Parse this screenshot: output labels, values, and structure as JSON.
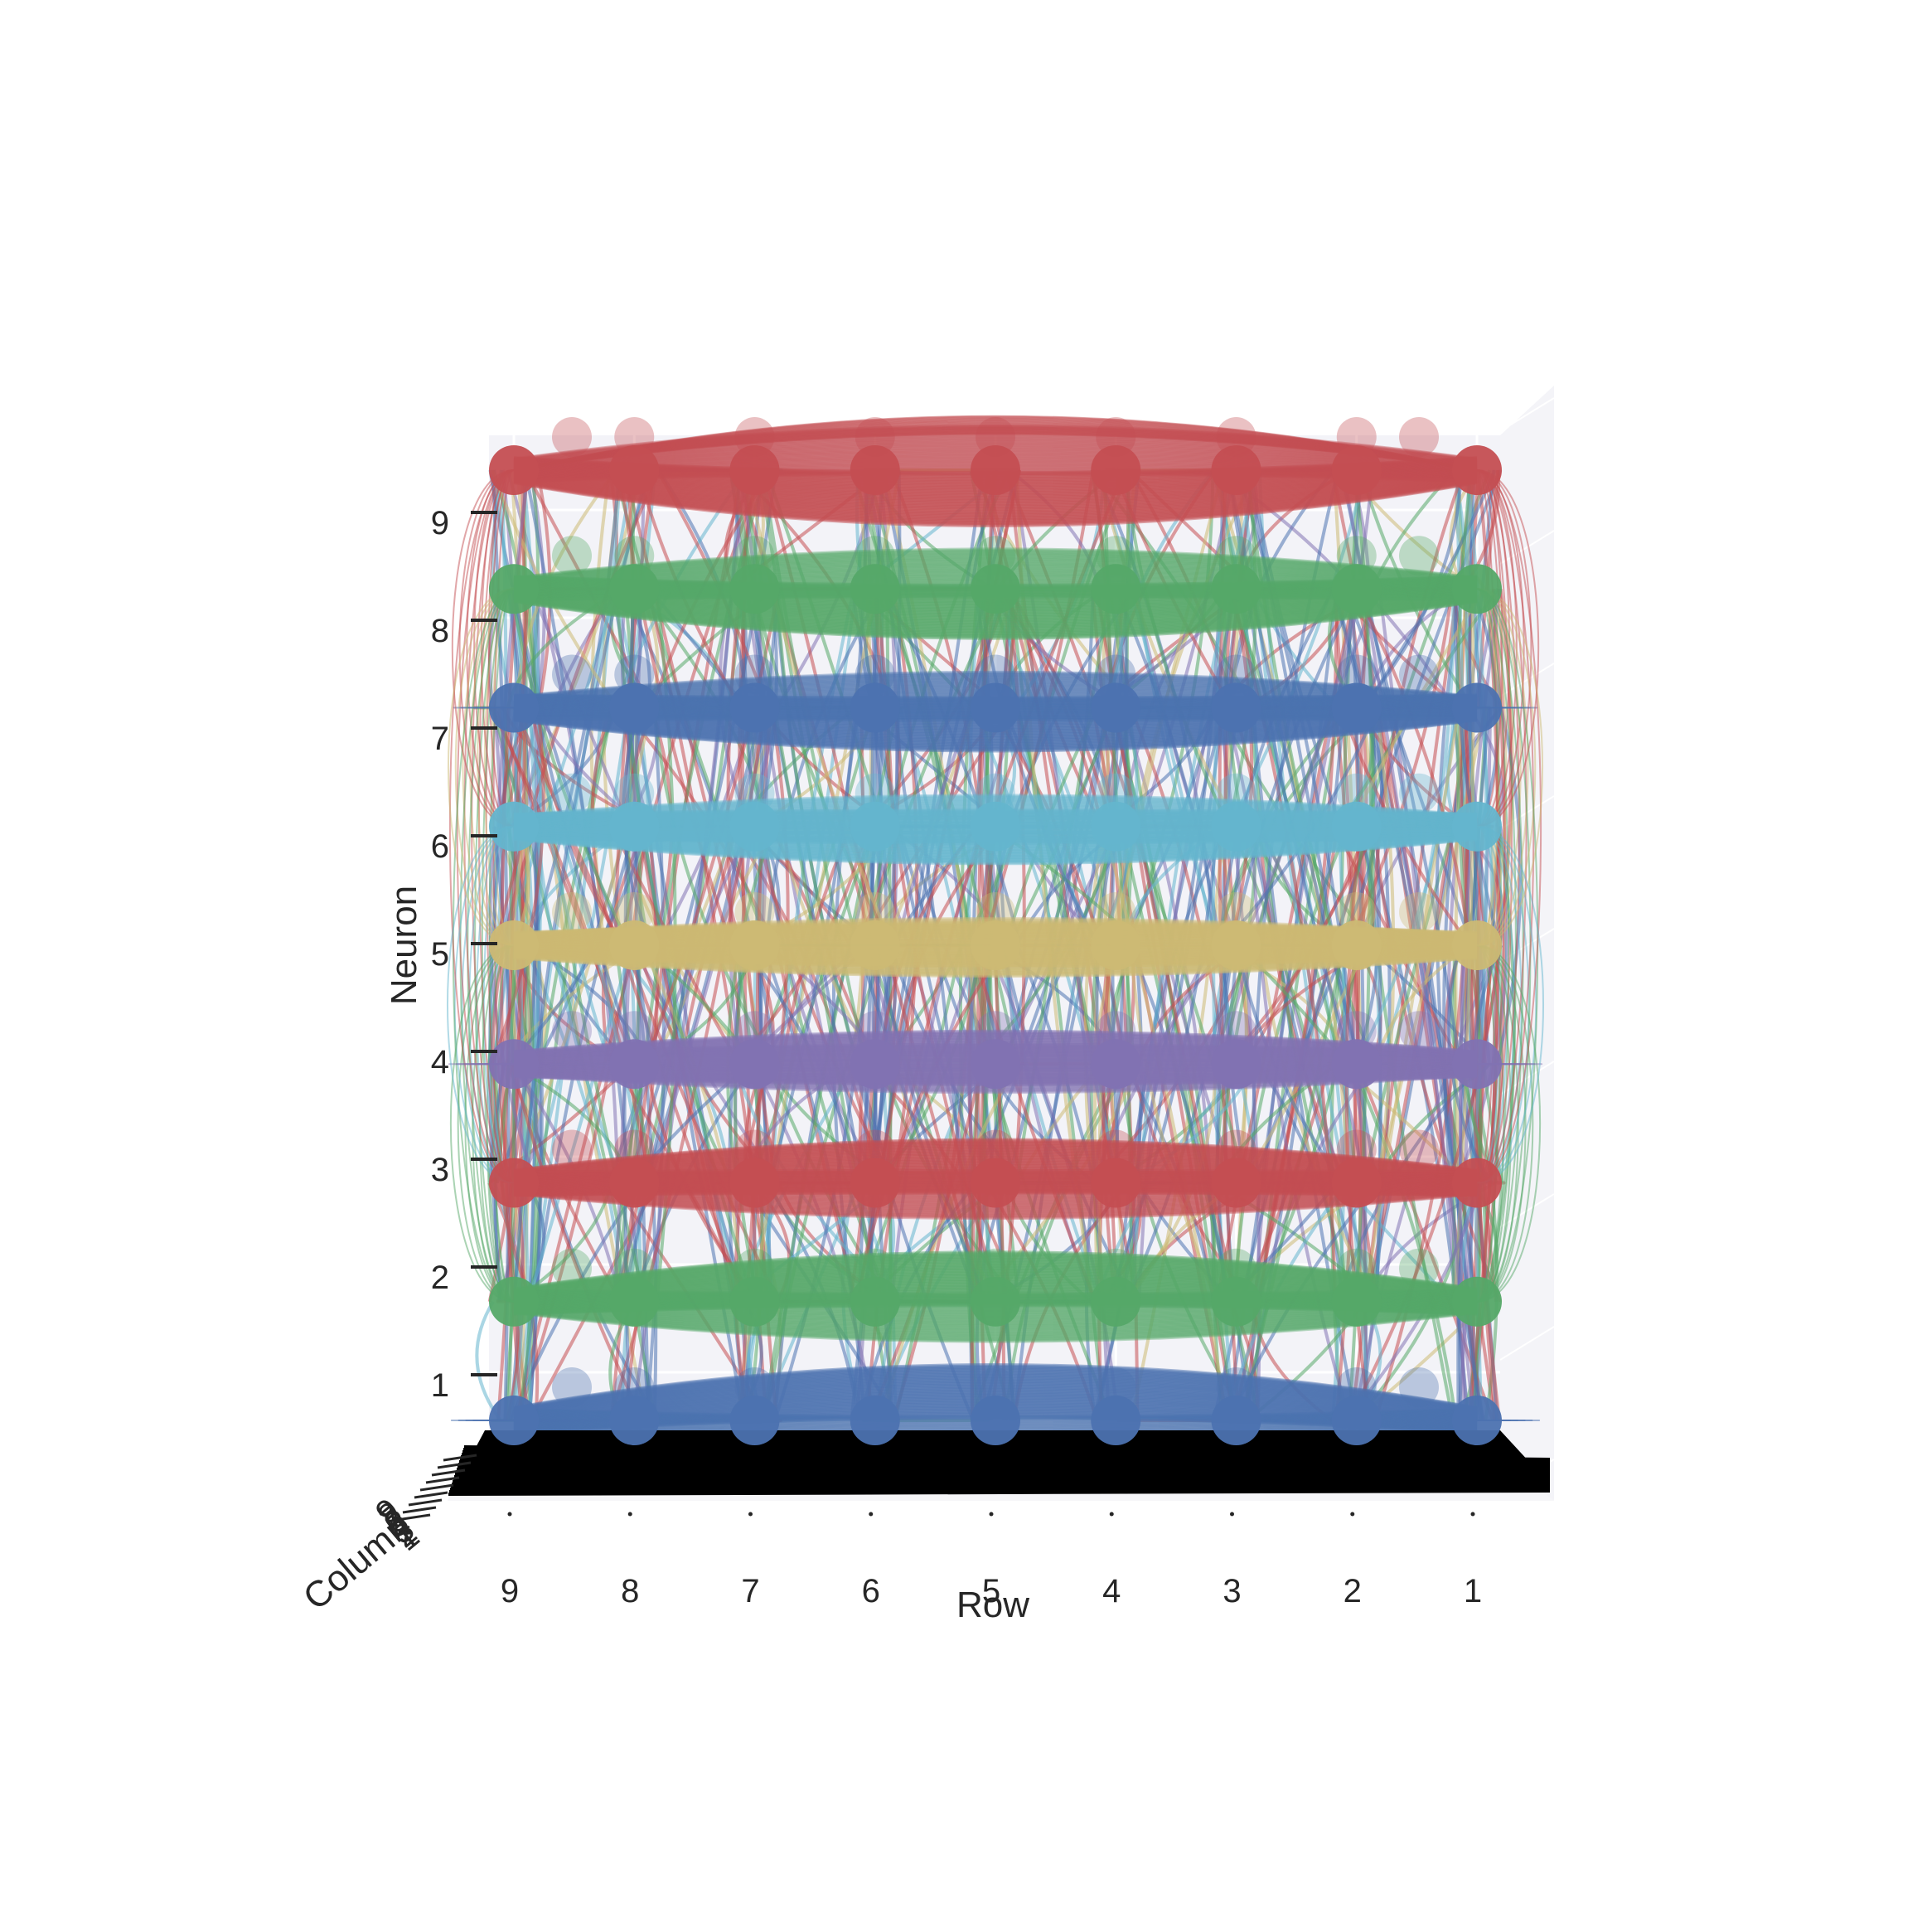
{
  "chart_data": {
    "type": "scatter",
    "projection": "3d",
    "view": "front (row axis horizontal, reversed; neuron axis vertical; column axis receding)",
    "title": "",
    "xlabel": "Row",
    "ylabel": "Neuron",
    "zlabel": "Column",
    "x_ticks": [
      "9",
      "8",
      "7",
      "6",
      "5",
      "4",
      "3",
      "2",
      "1"
    ],
    "y_ticks": [
      "1",
      "2",
      "3",
      "4",
      "5",
      "6",
      "7",
      "8",
      "9"
    ],
    "z_ticks": [
      "1",
      "2",
      "3",
      "4",
      "5",
      "6",
      "7",
      "8",
      "9"
    ],
    "xlim": [
      1,
      9
    ],
    "ylim": [
      1,
      9
    ],
    "zlim": [
      1,
      9
    ],
    "x_reversed": true,
    "grid": true,
    "legend": "none",
    "base_plane_color": "#000000",
    "series": [
      {
        "neuron": 1,
        "color": "#4c72b0"
      },
      {
        "neuron": 2,
        "color": "#55a868"
      },
      {
        "neuron": 3,
        "color": "#c44e52"
      },
      {
        "neuron": 4,
        "color": "#8172b2"
      },
      {
        "neuron": 5,
        "color": "#ccb974"
      },
      {
        "neuron": 6,
        "color": "#64b5cd"
      },
      {
        "neuron": 7,
        "color": "#4c72b0"
      },
      {
        "neuron": 8,
        "color": "#55a868"
      },
      {
        "neuron": 9,
        "color": "#c44e52"
      }
    ],
    "points_per_layer": {
      "rows": [
        1,
        2,
        3,
        4,
        5,
        6,
        7,
        8,
        9
      ],
      "columns": [
        1,
        2,
        3,
        4,
        5,
        6,
        7,
        8,
        9
      ]
    },
    "connections": "dense curved links between all nodes within and across neuron layers"
  }
}
